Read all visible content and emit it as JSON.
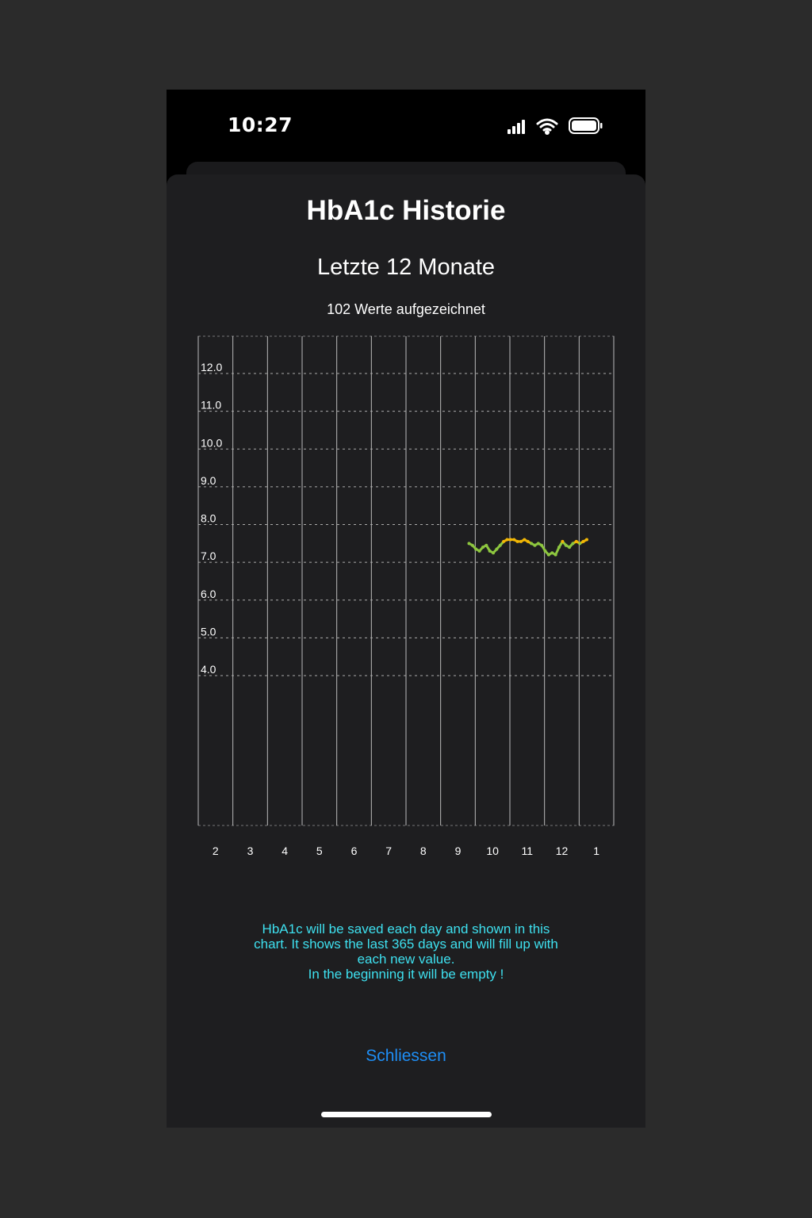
{
  "status_bar": {
    "time": "10:27",
    "icons": [
      "signal-icon",
      "wifi-icon",
      "battery-icon"
    ]
  },
  "sheet": {
    "title": "HbA1c Historie",
    "subtitle": "Letzte 12 Monate",
    "count_text": "102 Werte aufgezeichnet",
    "info_lines": [
      "HbA1c will be saved each day and shown in this",
      "chart. It shows the last 365 days and will fill up with",
      "each new value.",
      "In the beginning it will be empty !"
    ],
    "close_label": "Schliessen"
  },
  "colors": {
    "in_range": "#8dc63f",
    "elevated": "#f2b705",
    "info_text": "#3ee0ef",
    "link": "#1e8ef5"
  },
  "chart_data": {
    "type": "line",
    "title": "",
    "xlabel": "",
    "ylabel": "",
    "x_tick_labels": [
      "2",
      "3",
      "4",
      "5",
      "6",
      "7",
      "8",
      "9",
      "10",
      "11",
      "12",
      "1"
    ],
    "y_tick_labels": [
      "12.0",
      "11.0",
      "10.0",
      "9.0",
      "8.0",
      "7.0",
      "6.0",
      "5.0",
      "4.0"
    ],
    "ylim": [
      0,
      13
    ],
    "xlim": [
      1.5,
      13.5
    ],
    "grid": true,
    "series": [
      {
        "x": [
          9.32,
          9.42,
          9.52,
          9.62,
          9.72,
          9.82,
          9.92,
          10.02,
          10.12,
          10.22,
          10.32,
          10.42,
          10.52,
          10.62,
          10.72,
          10.82,
          10.92,
          11.02,
          11.12,
          11.22,
          11.32,
          11.42,
          11.52,
          11.62,
          11.72,
          11.82,
          11.92,
          12.02,
          12.12,
          12.22,
          12.32,
          12.42,
          12.52,
          12.62,
          12.72
        ],
        "y": [
          7.5,
          7.45,
          7.35,
          7.3,
          7.4,
          7.45,
          7.3,
          7.25,
          7.35,
          7.45,
          7.55,
          7.6,
          7.6,
          7.6,
          7.55,
          7.55,
          7.6,
          7.55,
          7.5,
          7.45,
          7.5,
          7.45,
          7.3,
          7.2,
          7.25,
          7.2,
          7.4,
          7.55,
          7.45,
          7.4,
          7.5,
          7.55,
          7.5,
          7.55,
          7.6
        ],
        "highlight_above": 7.52
      }
    ]
  }
}
